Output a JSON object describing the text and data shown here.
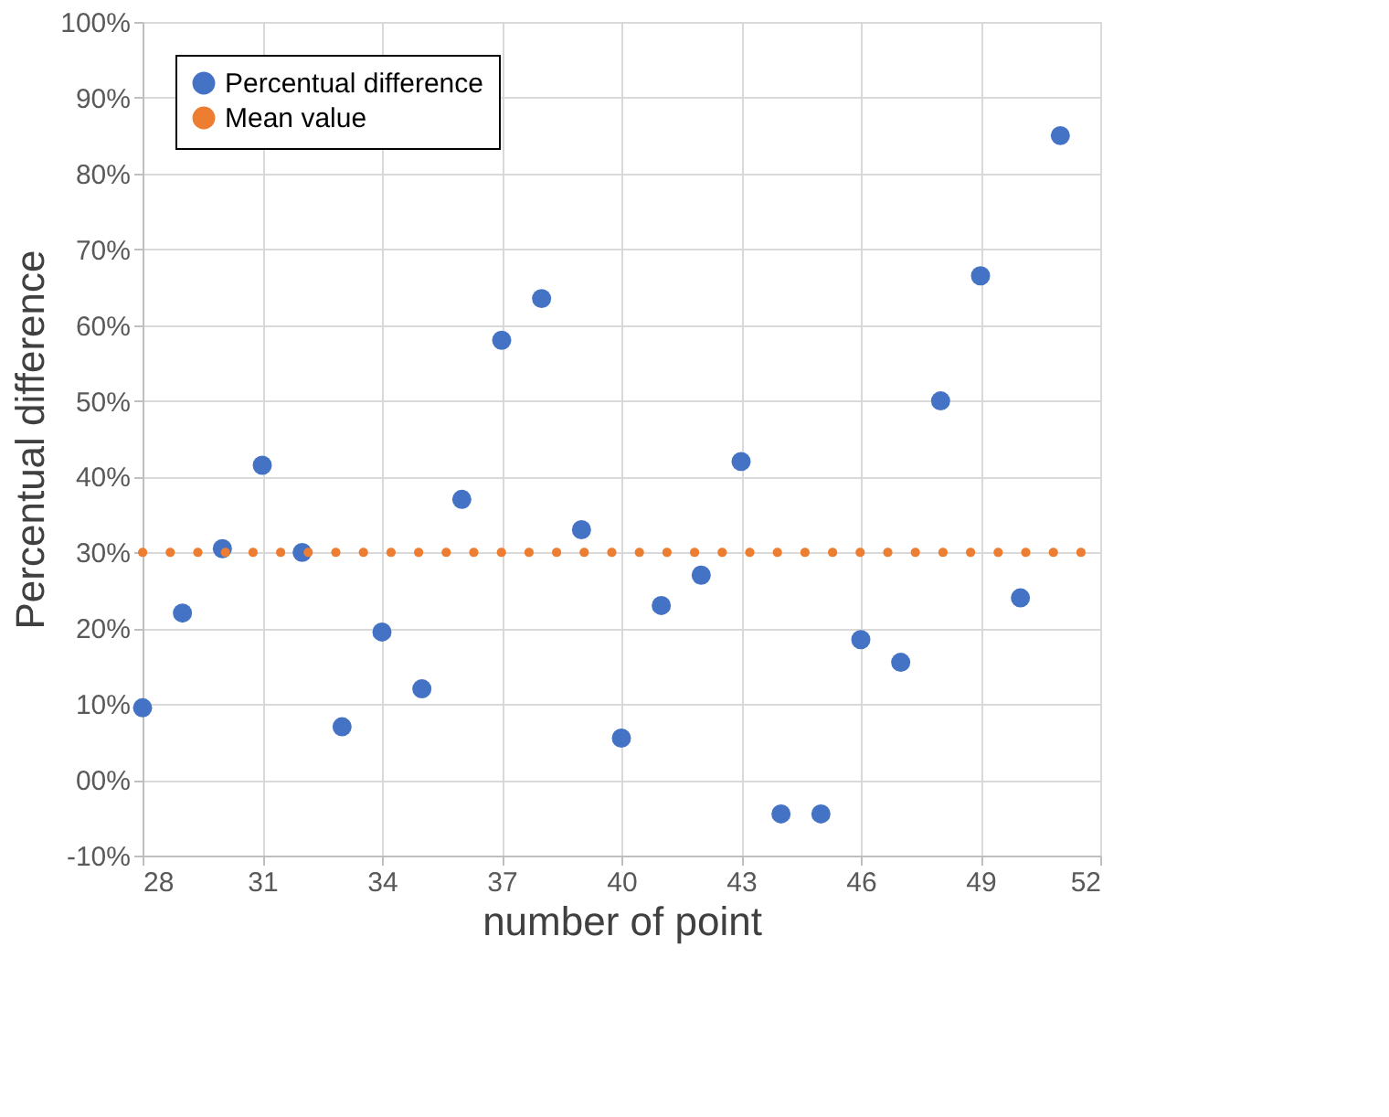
{
  "chart_data": {
    "type": "scatter",
    "xlabel": "number of point",
    "ylabel": "Percentual difference",
    "x": [
      28,
      29,
      30,
      31,
      32,
      33,
      34,
      35,
      36,
      37,
      38,
      39,
      40,
      41,
      42,
      43,
      44,
      45,
      46,
      47,
      48,
      49,
      50,
      51
    ],
    "series": [
      {
        "name": "Percentual difference",
        "color": "#4472c4",
        "marker": "circle",
        "values": [
          9.5,
          22,
          30.5,
          41.5,
          30,
          7,
          19.5,
          12,
          37,
          58,
          63.5,
          33,
          5.5,
          23,
          27,
          42,
          -4.5,
          -4.5,
          18.5,
          15.5,
          50,
          66.5,
          24,
          85
        ]
      },
      {
        "name": "Mean value",
        "color": "#ed7d31",
        "type": "line",
        "line_style": "dotted",
        "x": [
          28,
          52
        ],
        "values": [
          30,
          30
        ]
      }
    ],
    "xlim": [
      28,
      52
    ],
    "xticks": [
      28,
      31,
      34,
      37,
      40,
      43,
      46,
      49,
      52
    ],
    "ylim": [
      -10,
      100
    ],
    "yticks": [
      {
        "value": -10,
        "label": "-10%"
      },
      {
        "value": 0,
        "label": "00%"
      },
      {
        "value": 10,
        "label": "10%"
      },
      {
        "value": 20,
        "label": "20%"
      },
      {
        "value": 30,
        "label": "30%"
      },
      {
        "value": 40,
        "label": "40%"
      },
      {
        "value": 50,
        "label": "50%"
      },
      {
        "value": 60,
        "label": "60%"
      },
      {
        "value": 70,
        "label": "70%"
      },
      {
        "value": 80,
        "label": "80%"
      },
      {
        "value": 90,
        "label": "90%"
      },
      {
        "value": 100,
        "label": "100%"
      }
    ],
    "grid": true,
    "legend": "top left"
  }
}
